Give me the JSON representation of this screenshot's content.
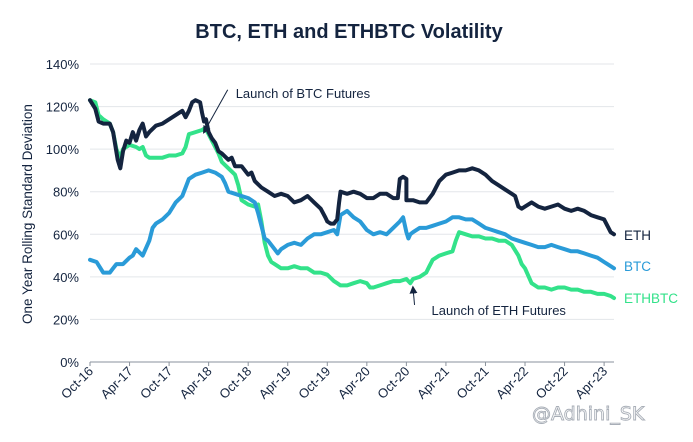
{
  "chart_data": {
    "type": "line",
    "title": "BTC, ETH and ETHBTC Volatility",
    "ylabel": "One Year Rolling Standard Deviation",
    "xlabel": "",
    "ylim": [
      0,
      140
    ],
    "yticks": [
      0,
      20,
      40,
      60,
      80,
      100,
      120,
      140
    ],
    "ytick_labels": [
      "0%",
      "20%",
      "40%",
      "60%",
      "80%",
      "100%",
      "120%",
      "140%"
    ],
    "x_tick_labels": [
      "Oct-16",
      "Apr-17",
      "Oct-17",
      "Apr-18",
      "Oct-18",
      "Apr-19",
      "Oct-19",
      "Apr-20",
      "Oct-20",
      "Apr-21",
      "Oct-21",
      "Apr-22",
      "Oct-22",
      "Apr-23"
    ],
    "xlim": [
      0,
      79.5
    ],
    "x_unit": "months since Oct-16",
    "grid": "horizontal",
    "series": [
      {
        "name": "ETH",
        "color": "#14243f",
        "points": [
          [
            0,
            123
          ],
          [
            0.8,
            119
          ],
          [
            1.3,
            113
          ],
          [
            2,
            112
          ],
          [
            3,
            112
          ],
          [
            3.5,
            108
          ],
          [
            4.2,
            95
          ],
          [
            4.6,
            91
          ],
          [
            5,
            99
          ],
          [
            5.5,
            104
          ],
          [
            6,
            103
          ],
          [
            6.5,
            108
          ],
          [
            7,
            104
          ],
          [
            7.5,
            109
          ],
          [
            8,
            112
          ],
          [
            8.5,
            106
          ],
          [
            9,
            108
          ],
          [
            10,
            111
          ],
          [
            11,
            112
          ],
          [
            12,
            114
          ],
          [
            13,
            116
          ],
          [
            14,
            118
          ],
          [
            14.5,
            115
          ],
          [
            15,
            118
          ],
          [
            15.5,
            122
          ],
          [
            16,
            123
          ],
          [
            16.7,
            122
          ],
          [
            17,
            117
          ],
          [
            17.3,
            113
          ],
          [
            17.6,
            114
          ],
          [
            18,
            108
          ],
          [
            18.5,
            105
          ],
          [
            19,
            103
          ],
          [
            19.5,
            99
          ],
          [
            20,
            98
          ],
          [
            21,
            95
          ],
          [
            21.5,
            96
          ],
          [
            22,
            92
          ],
          [
            23,
            92
          ],
          [
            24,
            88
          ],
          [
            24.5,
            89
          ],
          [
            25,
            85
          ],
          [
            26,
            82
          ],
          [
            27,
            80
          ],
          [
            28,
            78
          ],
          [
            29,
            79
          ],
          [
            30,
            78
          ],
          [
            31,
            75
          ],
          [
            32,
            76
          ],
          [
            33,
            78
          ],
          [
            34,
            75
          ],
          [
            35,
            72
          ],
          [
            35.7,
            68
          ],
          [
            36,
            66
          ],
          [
            36.5,
            65
          ],
          [
            37,
            65
          ],
          [
            37.5,
            67
          ],
          [
            37.8,
            75
          ],
          [
            38,
            80
          ],
          [
            39,
            79
          ],
          [
            40,
            80
          ],
          [
            41,
            79
          ],
          [
            42,
            77
          ],
          [
            43,
            77
          ],
          [
            44,
            79
          ],
          [
            45,
            79
          ],
          [
            46,
            77
          ],
          [
            46.7,
            77
          ],
          [
            47,
            86
          ],
          [
            47.5,
            87
          ],
          [
            48,
            86
          ],
          [
            48,
            76
          ],
          [
            49,
            76
          ],
          [
            50,
            75
          ],
          [
            51,
            75
          ],
          [
            52,
            79
          ],
          [
            53,
            85
          ],
          [
            54,
            88
          ],
          [
            55,
            89
          ],
          [
            56,
            90
          ],
          [
            57,
            90
          ],
          [
            58,
            91
          ],
          [
            59,
            90
          ],
          [
            60,
            88
          ],
          [
            61,
            85
          ],
          [
            62,
            83
          ],
          [
            63,
            81
          ],
          [
            64,
            79
          ],
          [
            64.5,
            78
          ],
          [
            65,
            73
          ],
          [
            65.5,
            72
          ],
          [
            66,
            73
          ],
          [
            67,
            75
          ],
          [
            68,
            73
          ],
          [
            69,
            72
          ],
          [
            70,
            73
          ],
          [
            71,
            74
          ],
          [
            72,
            72
          ],
          [
            73,
            71
          ],
          [
            74,
            72
          ],
          [
            75,
            71
          ],
          [
            76,
            69
          ],
          [
            77,
            68
          ],
          [
            78,
            67
          ],
          [
            78.5,
            64
          ],
          [
            79,
            61
          ],
          [
            79.5,
            60
          ]
        ]
      },
      {
        "name": "BTC",
        "color": "#2a9bd8",
        "points": [
          [
            0,
            48
          ],
          [
            1,
            47
          ],
          [
            2,
            42
          ],
          [
            3,
            42
          ],
          [
            3.5,
            44
          ],
          [
            4,
            46
          ],
          [
            5,
            46
          ],
          [
            6,
            49
          ],
          [
            6.5,
            50
          ],
          [
            7,
            53
          ],
          [
            8,
            50
          ],
          [
            9,
            57
          ],
          [
            9.5,
            63
          ],
          [
            10,
            65
          ],
          [
            11,
            67
          ],
          [
            12,
            70
          ],
          [
            13,
            75
          ],
          [
            14,
            78
          ],
          [
            14.5,
            82
          ],
          [
            15,
            86
          ],
          [
            16,
            88
          ],
          [
            17,
            89
          ],
          [
            18,
            90
          ],
          [
            19,
            89
          ],
          [
            20,
            87
          ],
          [
            20.5,
            84
          ],
          [
            21,
            80
          ],
          [
            22,
            79
          ],
          [
            23,
            78
          ],
          [
            24,
            77
          ],
          [
            25,
            75
          ],
          [
            25.5,
            70
          ],
          [
            26,
            64
          ],
          [
            26.5,
            58
          ],
          [
            27,
            57
          ],
          [
            28,
            53
          ],
          [
            28.5,
            51
          ],
          [
            29,
            53
          ],
          [
            30,
            55
          ],
          [
            31,
            56
          ],
          [
            32,
            55
          ],
          [
            33,
            58
          ],
          [
            34,
            60
          ],
          [
            35,
            60
          ],
          [
            36,
            61
          ],
          [
            37,
            62
          ],
          [
            37.5,
            60
          ],
          [
            38,
            69
          ],
          [
            39,
            71
          ],
          [
            40,
            68
          ],
          [
            41,
            66
          ],
          [
            42,
            62
          ],
          [
            43,
            60
          ],
          [
            44,
            61
          ],
          [
            45,
            60
          ],
          [
            46,
            63
          ],
          [
            47,
            66
          ],
          [
            47.5,
            68
          ],
          [
            48,
            61
          ],
          [
            48.3,
            58
          ],
          [
            48.6,
            60
          ],
          [
            49,
            61
          ],
          [
            50,
            63
          ],
          [
            51,
            63
          ],
          [
            52,
            64
          ],
          [
            53,
            65
          ],
          [
            54,
            66
          ],
          [
            55,
            68
          ],
          [
            56,
            68
          ],
          [
            57,
            67
          ],
          [
            58,
            67
          ],
          [
            59,
            65
          ],
          [
            60,
            63
          ],
          [
            61,
            62
          ],
          [
            62,
            61
          ],
          [
            63,
            60
          ],
          [
            64,
            58
          ],
          [
            65,
            57
          ],
          [
            66,
            56
          ],
          [
            67,
            55
          ],
          [
            68,
            54
          ],
          [
            69,
            54
          ],
          [
            70,
            55
          ],
          [
            71,
            54
          ],
          [
            72,
            53
          ],
          [
            73,
            52
          ],
          [
            74,
            52
          ],
          [
            75,
            51
          ],
          [
            76,
            50
          ],
          [
            77,
            49
          ],
          [
            78,
            47
          ],
          [
            78.5,
            46
          ],
          [
            79,
            45
          ],
          [
            79.5,
            44
          ]
        ]
      },
      {
        "name": "ETHBTC",
        "color": "#33e28a",
        "points": [
          [
            0,
            123
          ],
          [
            0.8,
            122
          ],
          [
            1.3,
            116
          ],
          [
            2,
            114
          ],
          [
            3,
            112
          ],
          [
            3.5,
            108
          ],
          [
            4,
            100
          ],
          [
            4.6,
            96
          ],
          [
            5,
            100
          ],
          [
            5.5,
            101
          ],
          [
            6,
            102
          ],
          [
            7,
            101
          ],
          [
            7.5,
            100
          ],
          [
            8,
            101
          ],
          [
            8.5,
            97
          ],
          [
            9,
            96
          ],
          [
            10,
            96
          ],
          [
            11,
            96
          ],
          [
            12,
            97
          ],
          [
            13,
            97
          ],
          [
            14,
            98
          ],
          [
            14.5,
            101
          ],
          [
            15,
            107
          ],
          [
            16,
            108
          ],
          [
            17,
            109
          ],
          [
            17.5,
            110
          ],
          [
            18,
            107
          ],
          [
            18.5,
            104
          ],
          [
            19,
            101
          ],
          [
            19.5,
            98
          ],
          [
            20,
            94
          ],
          [
            21,
            91
          ],
          [
            22,
            88
          ],
          [
            22.5,
            83
          ],
          [
            23,
            76
          ],
          [
            24,
            74
          ],
          [
            25,
            73
          ],
          [
            25.5,
            74
          ],
          [
            26,
            66
          ],
          [
            26.5,
            56
          ],
          [
            27,
            50
          ],
          [
            27.5,
            47
          ],
          [
            28,
            46
          ],
          [
            29,
            44
          ],
          [
            30,
            44
          ],
          [
            31,
            45
          ],
          [
            32,
            44
          ],
          [
            33,
            44
          ],
          [
            34,
            42
          ],
          [
            35,
            42
          ],
          [
            36,
            41
          ],
          [
            37,
            38
          ],
          [
            37.5,
            37
          ],
          [
            38,
            36
          ],
          [
            39,
            36
          ],
          [
            40,
            37
          ],
          [
            41,
            38
          ],
          [
            42,
            37
          ],
          [
            42.5,
            35
          ],
          [
            43,
            35
          ],
          [
            44,
            36
          ],
          [
            45,
            37
          ],
          [
            46,
            38
          ],
          [
            47,
            38
          ],
          [
            48,
            39
          ],
          [
            48.6,
            37
          ],
          [
            49,
            39
          ],
          [
            50,
            40
          ],
          [
            51,
            42
          ],
          [
            51.5,
            45
          ],
          [
            52,
            48
          ],
          [
            53,
            50
          ],
          [
            54,
            51
          ],
          [
            55,
            52
          ],
          [
            55.5,
            57
          ],
          [
            56,
            61
          ],
          [
            57,
            60
          ],
          [
            58,
            59
          ],
          [
            59,
            59
          ],
          [
            60,
            58
          ],
          [
            61,
            58
          ],
          [
            62,
            57
          ],
          [
            63,
            57
          ],
          [
            64,
            55
          ],
          [
            65,
            50
          ],
          [
            65.5,
            46
          ],
          [
            66,
            44
          ],
          [
            67,
            37
          ],
          [
            68,
            35
          ],
          [
            69,
            35
          ],
          [
            70,
            34
          ],
          [
            71,
            35
          ],
          [
            72,
            35
          ],
          [
            73,
            34
          ],
          [
            74,
            34
          ],
          [
            75,
            33
          ],
          [
            76,
            33
          ],
          [
            77,
            32
          ],
          [
            78,
            32
          ],
          [
            79,
            31
          ],
          [
            79.5,
            30
          ]
        ]
      }
    ],
    "annotations": [
      {
        "text": "Launch of BTC Futures",
        "x": 17.3,
        "y": 108,
        "label_x": 21.5,
        "label_y": 126
      },
      {
        "text": "Launch of ETH Futures",
        "x": 49,
        "y": 35,
        "label_x": 50.3,
        "label_y": 24
      }
    ]
  },
  "watermark": "@Adhini_SK"
}
